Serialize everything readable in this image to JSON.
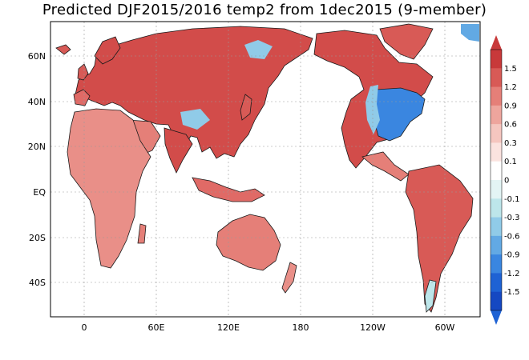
{
  "title": "Predicted DJF2015/2016 temp2 from 1dec2015 (9-member)",
  "map": {
    "type": "global anomaly map (land only)",
    "projection": "cylindrical, centered on 180",
    "lon_range": [
      -30,
      330
    ],
    "lat_range": [
      -55,
      75
    ],
    "gridlines": "dotted",
    "lat_labels": [
      {
        "lat": 60,
        "label": "60N"
      },
      {
        "lat": 40,
        "label": "40N"
      },
      {
        "lat": 20,
        "label": "20N"
      },
      {
        "lat": 0,
        "label": "EQ"
      },
      {
        "lat": -20,
        "label": "20S"
      },
      {
        "lat": -40,
        "label": "40S"
      }
    ],
    "lon_labels": [
      {
        "lon": 0,
        "label": "0"
      },
      {
        "lon": 60,
        "label": "60E"
      },
      {
        "lon": 120,
        "label": "120E"
      },
      {
        "lon": 180,
        "label": "180"
      },
      {
        "lon": 240,
        "label": "120W"
      },
      {
        "lon": 300,
        "label": "60W"
      }
    ]
  },
  "colorbar": {
    "levels": [
      "1.5",
      "1.2",
      "0.9",
      "0.6",
      "0.3",
      "0.1",
      "0",
      "-0.1",
      "-0.3",
      "-0.6",
      "-0.9",
      "-1.2",
      "-1.5"
    ],
    "colors": [
      "#c8393a",
      "#d85a56",
      "#e57f78",
      "#eea59d",
      "#f5c6bf",
      "#fbe3df",
      "#ffffff",
      "#e3f4f4",
      "#bde6ea",
      "#90cbe8",
      "#62a9e4",
      "#3a86e0",
      "#1e62d4",
      "#1548c2"
    ],
    "top_color": "#c8393a",
    "bottom_color": "#1e62d4"
  }
}
